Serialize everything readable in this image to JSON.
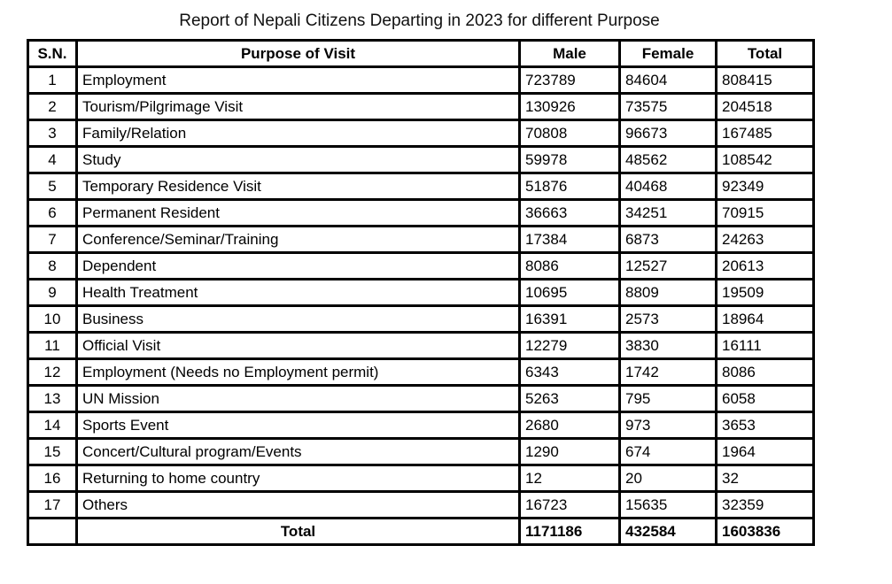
{
  "title": "Report of Nepali Citizens Departing in 2023 for different Purpose",
  "table": {
    "columns": [
      "S.N.",
      "Purpose of Visit",
      "Male",
      "Female",
      "Total"
    ],
    "rows": [
      {
        "sn": "1",
        "purpose": "Employment",
        "male": "723789",
        "female": "84604",
        "total": "808415"
      },
      {
        "sn": "2",
        "purpose": "Tourism/Pilgrimage Visit",
        "male": "130926",
        "female": "73575",
        "total": "204518"
      },
      {
        "sn": "3",
        "purpose": "Family/Relation",
        "male": "70808",
        "female": "96673",
        "total": "167485"
      },
      {
        "sn": "4",
        "purpose": "Study",
        "male": "59978",
        "female": "48562",
        "total": "108542"
      },
      {
        "sn": "5",
        "purpose": "Temporary Residence Visit",
        "male": "51876",
        "female": "40468",
        "total": "92349"
      },
      {
        "sn": "6",
        "purpose": "Permanent Resident",
        "male": "36663",
        "female": "34251",
        "total": "70915"
      },
      {
        "sn": "7",
        "purpose": "Conference/Seminar/Training",
        "male": "17384",
        "female": "6873",
        "total": "24263"
      },
      {
        "sn": "8",
        "purpose": "Dependent",
        "male": "8086",
        "female": "12527",
        "total": "20613"
      },
      {
        "sn": "9",
        "purpose": "Health Treatment",
        "male": "10695",
        "female": "8809",
        "total": "19509"
      },
      {
        "sn": "10",
        "purpose": "Business",
        "male": "16391",
        "female": "2573",
        "total": "18964"
      },
      {
        "sn": "11",
        "purpose": "Official Visit",
        "male": "12279",
        "female": "3830",
        "total": "16111"
      },
      {
        "sn": "12",
        "purpose": "Employment (Needs no Employment permit)",
        "male": "6343",
        "female": "1742",
        "total": "8086"
      },
      {
        "sn": "13",
        "purpose": "UN Mission",
        "male": "5263",
        "female": "795",
        "total": "6058"
      },
      {
        "sn": "14",
        "purpose": "Sports Event",
        "male": "2680",
        "female": "973",
        "total": "3653"
      },
      {
        "sn": "15",
        "purpose": "Concert/Cultural program/Events",
        "male": "1290",
        "female": "674",
        "total": "1964"
      },
      {
        "sn": "16",
        "purpose": "Returning to home country",
        "male": "12",
        "female": "20",
        "total": "32"
      },
      {
        "sn": "17",
        "purpose": "Others",
        "male": "16723",
        "female": "15635",
        "total": "32359"
      }
    ],
    "total_row": {
      "sn": "",
      "label": "Total",
      "male": "1171186",
      "female": "432584",
      "total": "1603836"
    }
  },
  "colors": {
    "border": "#000000",
    "text": "#111111",
    "background": "#ffffff"
  }
}
